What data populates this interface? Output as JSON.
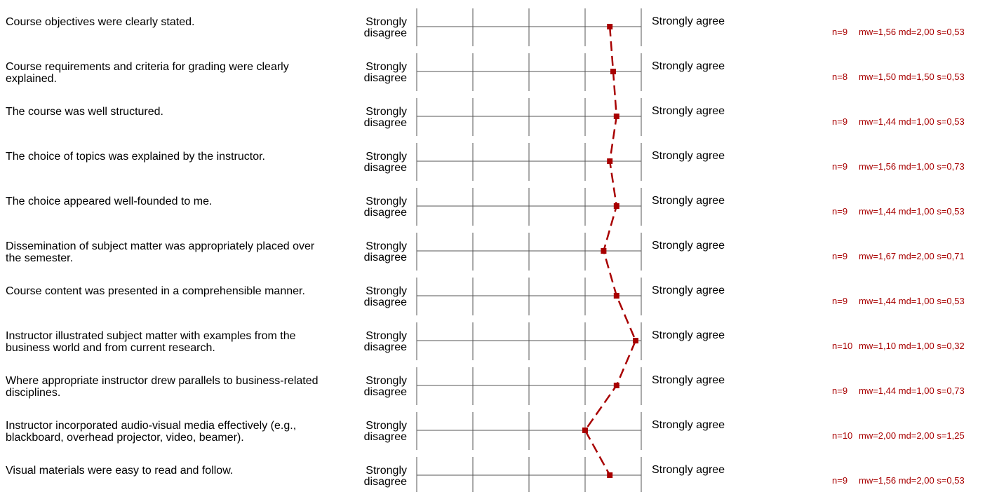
{
  "labels": {
    "left": "Strongly\ndisagree",
    "right": "Strongly agree"
  },
  "colors": {
    "profile_line": "#a80000",
    "grid": "#555555",
    "stats_text": "#a80000"
  },
  "chart_data": {
    "type": "line",
    "scale": [
      1,
      5
    ],
    "orientation": "left is agree (1) ... right-most tick region mapped per profile",
    "items": [
      {
        "question": "Course objectives were clearly stated.",
        "n": "n=9",
        "mw": "mw=1,56",
        "md": "md=2,00",
        "s": "s=0,53",
        "mean": 1.56
      },
      {
        "question": "Course requirements and criteria for grading were clearly explained.",
        "n": "n=8",
        "mw": "mw=1,50",
        "md": "md=1,50",
        "s": "s=0,53",
        "mean": 1.5
      },
      {
        "question": "The course was well structured.",
        "n": "n=9",
        "mw": "mw=1,44",
        "md": "md=1,00",
        "s": "s=0,53",
        "mean": 1.44
      },
      {
        "question": "The choice of topics was explained by the instructor.",
        "n": "n=9",
        "mw": "mw=1,56",
        "md": "md=1,00",
        "s": "s=0,73",
        "mean": 1.56
      },
      {
        "question": "The choice appeared well-founded to me.",
        "n": "n=9",
        "mw": "mw=1,44",
        "md": "md=1,00",
        "s": "s=0,53",
        "mean": 1.44
      },
      {
        "question": "Dissemination of subject matter was appropriately placed over the semester.",
        "n": "n=9",
        "mw": "mw=1,67",
        "md": "md=2,00",
        "s": "s=0,71",
        "mean": 1.67
      },
      {
        "question": "Course content was presented in a comprehensible manner.",
        "n": "n=9",
        "mw": "mw=1,44",
        "md": "md=1,00",
        "s": "s=0,53",
        "mean": 1.44
      },
      {
        "question": "Instructor illustrated subject matter with examples from the business world and from current research.",
        "n": "n=10",
        "mw": "mw=1,10",
        "md": "md=1,00",
        "s": "s=0,32",
        "mean": 1.1
      },
      {
        "question": "Where appropriate instructor drew parallels to business-related disciplines.",
        "n": "n=9",
        "mw": "mw=1,44",
        "md": "md=1,00",
        "s": "s=0,73",
        "mean": 1.44
      },
      {
        "question": "Instructor incorporated audio-visual media effectively (e.g., blackboard, overhead projector, video, beamer).",
        "n": "n=10",
        "mw": "mw=2,00",
        "md": "md=2,00",
        "s": "s=1,25",
        "mean": 2.0
      },
      {
        "question": "Visual materials were easy to read and follow.",
        "n": "n=9",
        "mw": "mw=1,56",
        "md": "md=2,00",
        "s": "s=0,53",
        "mean": 1.56
      }
    ]
  }
}
